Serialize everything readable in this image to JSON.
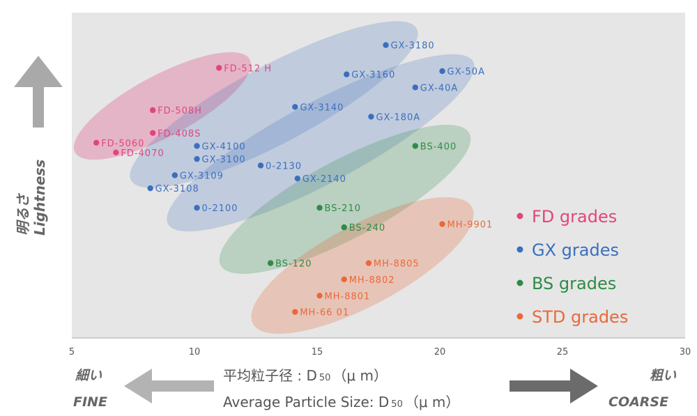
{
  "chart_data": {
    "type": "scatter",
    "xlim": [
      5,
      30
    ],
    "ylim": [
      0,
      100
    ],
    "xticks": [
      5,
      10,
      15,
      20,
      25,
      30
    ],
    "grid": false,
    "legend_position": "right",
    "y_axis_label": [
      "明るさ",
      "Lightness"
    ],
    "x_axis_title_jp": "平均粒子径 : D",
    "x_axis_title_en": "Average Particle Size: D",
    "x_axis_title_sub": "50",
    "x_axis_unit": "（μ m）",
    "fine_jp": "細い",
    "fine_en": "FINE",
    "coarse_jp": "粗い",
    "coarse_en": "COARSE",
    "series": [
      {
        "name": "FD grades",
        "color": "#e0457e",
        "points": [
          {
            "label": "FD-512 H",
            "x": 11.0,
            "y": 83
          },
          {
            "label": "FD-508H",
            "x": 8.3,
            "y": 70
          },
          {
            "label": "FD-408S",
            "x": 8.3,
            "y": 63
          },
          {
            "label": "FD-5060",
            "x": 6.0,
            "y": 60
          },
          {
            "label": "FD-4070",
            "x": 6.8,
            "y": 57
          }
        ]
      },
      {
        "name": "GX grades",
        "color": "#3b6fbe",
        "points": [
          {
            "label": "GX-3180",
            "x": 17.8,
            "y": 90
          },
          {
            "label": "GX-3160",
            "x": 16.2,
            "y": 81
          },
          {
            "label": "GX-50A",
            "x": 20.1,
            "y": 82
          },
          {
            "label": "GX-40A",
            "x": 19.0,
            "y": 77
          },
          {
            "label": "GX-3140",
            "x": 14.1,
            "y": 71
          },
          {
            "label": "GX-180A",
            "x": 17.2,
            "y": 68
          },
          {
            "label": "GX-4100",
            "x": 10.1,
            "y": 59
          },
          {
            "label": "GX-3100",
            "x": 10.1,
            "y": 55
          },
          {
            "label": "0-2130",
            "x": 12.7,
            "y": 53
          },
          {
            "label": "GX-3109",
            "x": 9.2,
            "y": 50
          },
          {
            "label": "GX-2140",
            "x": 14.2,
            "y": 49
          },
          {
            "label": "GX-3108",
            "x": 8.2,
            "y": 46
          },
          {
            "label": "0-2100",
            "x": 10.1,
            "y": 40
          }
        ]
      },
      {
        "name": "BS grades",
        "color": "#2e8b45",
        "points": [
          {
            "label": "BS-400",
            "x": 19.0,
            "y": 59
          },
          {
            "label": "BS-210",
            "x": 15.1,
            "y": 40
          },
          {
            "label": "BS-240",
            "x": 16.1,
            "y": 34
          },
          {
            "label": "BS-120",
            "x": 13.1,
            "y": 23
          }
        ]
      },
      {
        "name": "STD grades",
        "color": "#e8693a",
        "points": [
          {
            "label": "MH-9901",
            "x": 20.1,
            "y": 35
          },
          {
            "label": "MH-8805",
            "x": 17.1,
            "y": 23
          },
          {
            "label": "MH-8802",
            "x": 16.1,
            "y": 18
          },
          {
            "label": "MH-8801",
            "x": 15.1,
            "y": 13
          },
          {
            "label": "MH-66 01",
            "x": 14.1,
            "y": 8
          }
        ]
      }
    ]
  }
}
